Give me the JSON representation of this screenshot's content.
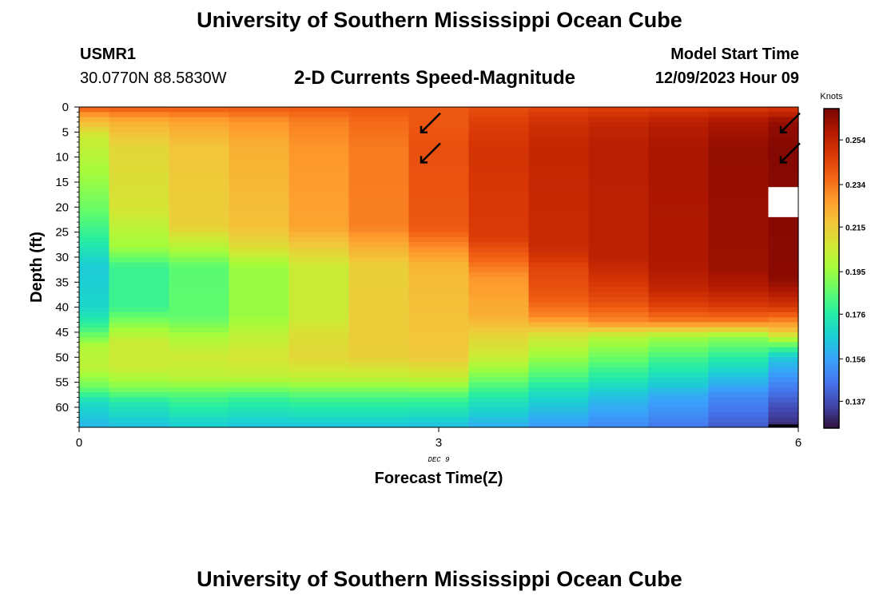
{
  "header": {
    "title": "University of Southern Mississippi Ocean Cube",
    "station": "USMR1",
    "coords": "30.0770N  88.5830W",
    "subtitle": "2-D Currents Speed-Magnitude",
    "model_label": "Model Start Time",
    "model_time": "12/09/2023 Hour 09"
  },
  "footer": {
    "title": "University of Southern Mississippi Ocean Cube"
  },
  "chart_data": {
    "type": "heatmap",
    "title": "2-D Currents Speed-Magnitude",
    "xlabel": "Forecast Time(Z)",
    "ylabel": "Depth (ft)",
    "x_ticks": [
      0,
      3,
      6
    ],
    "x_sublabel": "DEC 9",
    "xlim": [
      0,
      6
    ],
    "y_ticks": [
      0,
      5,
      10,
      15,
      20,
      25,
      30,
      35,
      40,
      45,
      50,
      55,
      60
    ],
    "ylim": [
      0,
      64
    ],
    "y_inverted": true,
    "colorbar": {
      "label": "Knots",
      "ticks": [
        0.254,
        0.234,
        0.215,
        0.195,
        0.176,
        0.156,
        0.137
      ],
      "range": [
        0.125,
        0.268
      ],
      "colormap": [
        "#30123b",
        "#4145ab",
        "#4675ed",
        "#39a2fc",
        "#1bcfd4",
        "#24eca6",
        "#61fc6c",
        "#a4fc3b",
        "#d1e834",
        "#f3c63a",
        "#fe9b2d",
        "#f36315",
        "#d93806",
        "#b11901",
        "#7a0402"
      ]
    },
    "columns": [
      {
        "x_start": 0.0,
        "x_end": 0.25,
        "profile": [
          [
            0,
            0.24
          ],
          [
            2,
            0.224
          ],
          [
            6,
            0.205
          ],
          [
            12,
            0.198
          ],
          [
            20,
            0.188
          ],
          [
            26,
            0.178
          ],
          [
            32,
            0.165
          ],
          [
            40,
            0.168
          ],
          [
            44,
            0.18
          ],
          [
            48,
            0.2
          ],
          [
            52,
            0.202
          ],
          [
            56,
            0.188
          ],
          [
            59,
            0.17
          ],
          [
            64,
            0.16
          ]
        ]
      },
      {
        "x_start": 0.25,
        "x_end": 0.75,
        "profile": [
          [
            0,
            0.24
          ],
          [
            3,
            0.222
          ],
          [
            8,
            0.212
          ],
          [
            20,
            0.208
          ],
          [
            28,
            0.196
          ],
          [
            32,
            0.18
          ],
          [
            40,
            0.18
          ],
          [
            44,
            0.195
          ],
          [
            47,
            0.205
          ],
          [
            52,
            0.205
          ],
          [
            56,
            0.192
          ],
          [
            59,
            0.175
          ],
          [
            64,
            0.162
          ]
        ]
      },
      {
        "x_start": 0.75,
        "x_end": 1.25,
        "profile": [
          [
            0,
            0.24
          ],
          [
            3,
            0.225
          ],
          [
            8,
            0.217
          ],
          [
            24,
            0.214
          ],
          [
            28,
            0.2
          ],
          [
            32,
            0.185
          ],
          [
            42,
            0.186
          ],
          [
            46,
            0.198
          ],
          [
            50,
            0.206
          ],
          [
            54,
            0.202
          ],
          [
            58,
            0.182
          ],
          [
            64,
            0.165
          ]
        ]
      },
      {
        "x_start": 1.25,
        "x_end": 1.75,
        "profile": [
          [
            0,
            0.24
          ],
          [
            3,
            0.228
          ],
          [
            8,
            0.222
          ],
          [
            24,
            0.218
          ],
          [
            28,
            0.21
          ],
          [
            32,
            0.195
          ],
          [
            42,
            0.195
          ],
          [
            46,
            0.203
          ],
          [
            50,
            0.208
          ],
          [
            54,
            0.202
          ],
          [
            58,
            0.18
          ],
          [
            64,
            0.163
          ]
        ]
      },
      {
        "x_start": 1.75,
        "x_end": 2.25,
        "profile": [
          [
            0,
            0.24
          ],
          [
            3,
            0.232
          ],
          [
            8,
            0.228
          ],
          [
            24,
            0.225
          ],
          [
            28,
            0.215
          ],
          [
            32,
            0.205
          ],
          [
            42,
            0.205
          ],
          [
            46,
            0.21
          ],
          [
            50,
            0.212
          ],
          [
            54,
            0.203
          ],
          [
            58,
            0.182
          ],
          [
            64,
            0.163
          ]
        ]
      },
      {
        "x_start": 2.25,
        "x_end": 2.75,
        "profile": [
          [
            0,
            0.24
          ],
          [
            3,
            0.236
          ],
          [
            8,
            0.233
          ],
          [
            24,
            0.232
          ],
          [
            28,
            0.222
          ],
          [
            32,
            0.214
          ],
          [
            42,
            0.215
          ],
          [
            46,
            0.215
          ],
          [
            50,
            0.214
          ],
          [
            54,
            0.203
          ],
          [
            58,
            0.182
          ],
          [
            64,
            0.163
          ]
        ]
      },
      {
        "x_start": 2.75,
        "x_end": 3.25,
        "profile": [
          [
            0,
            0.24
          ],
          [
            3,
            0.24
          ],
          [
            8,
            0.242
          ],
          [
            24,
            0.24
          ],
          [
            28,
            0.23
          ],
          [
            32,
            0.22
          ],
          [
            42,
            0.218
          ],
          [
            46,
            0.217
          ],
          [
            50,
            0.216
          ],
          [
            54,
            0.204
          ],
          [
            58,
            0.182
          ],
          [
            64,
            0.162
          ]
        ]
      },
      {
        "x_start": 3.25,
        "x_end": 3.75,
        "profile": [
          [
            0,
            0.242
          ],
          [
            3,
            0.246
          ],
          [
            8,
            0.249
          ],
          [
            26,
            0.247
          ],
          [
            30,
            0.238
          ],
          [
            34,
            0.228
          ],
          [
            42,
            0.222
          ],
          [
            46,
            0.212
          ],
          [
            50,
            0.205
          ],
          [
            54,
            0.19
          ],
          [
            58,
            0.175
          ],
          [
            64,
            0.158
          ]
        ]
      },
      {
        "x_start": 3.75,
        "x_end": 4.25,
        "profile": [
          [
            0,
            0.244
          ],
          [
            3,
            0.25
          ],
          [
            8,
            0.253
          ],
          [
            28,
            0.252
          ],
          [
            32,
            0.245
          ],
          [
            38,
            0.24
          ],
          [
            42,
            0.23
          ],
          [
            46,
            0.206
          ],
          [
            50,
            0.195
          ],
          [
            54,
            0.182
          ],
          [
            58,
            0.168
          ],
          [
            64,
            0.154
          ]
        ]
      },
      {
        "x_start": 4.25,
        "x_end": 4.75,
        "profile": [
          [
            0,
            0.245
          ],
          [
            3,
            0.253
          ],
          [
            8,
            0.256
          ],
          [
            30,
            0.255
          ],
          [
            34,
            0.25
          ],
          [
            39,
            0.242
          ],
          [
            43,
            0.23
          ],
          [
            46,
            0.2
          ],
          [
            50,
            0.188
          ],
          [
            54,
            0.176
          ],
          [
            58,
            0.162
          ],
          [
            64,
            0.15
          ]
        ]
      },
      {
        "x_start": 4.75,
        "x_end": 5.25,
        "profile": [
          [
            0,
            0.246
          ],
          [
            3,
            0.256
          ],
          [
            8,
            0.259
          ],
          [
            32,
            0.258
          ],
          [
            36,
            0.254
          ],
          [
            40,
            0.245
          ],
          [
            43,
            0.232
          ],
          [
            46,
            0.196
          ],
          [
            50,
            0.182
          ],
          [
            54,
            0.17
          ],
          [
            58,
            0.157
          ],
          [
            64,
            0.146
          ]
        ]
      },
      {
        "x_start": 5.25,
        "x_end": 5.75,
        "profile": [
          [
            0,
            0.247
          ],
          [
            3,
            0.259
          ],
          [
            8,
            0.263
          ],
          [
            32,
            0.262
          ],
          [
            36,
            0.257
          ],
          [
            40,
            0.247
          ],
          [
            43,
            0.232
          ],
          [
            46,
            0.193
          ],
          [
            50,
            0.177
          ],
          [
            54,
            0.163
          ],
          [
            58,
            0.15
          ],
          [
            64,
            0.14
          ]
        ]
      },
      {
        "x_start": 5.75,
        "x_end": 6.0,
        "gap": [
          16,
          21.5
        ],
        "profile": [
          [
            0,
            0.248
          ],
          [
            3,
            0.263
          ],
          [
            8,
            0.266
          ],
          [
            34,
            0.265
          ],
          [
            37,
            0.258
          ],
          [
            40,
            0.248
          ],
          [
            42,
            0.236
          ],
          [
            45,
            0.215
          ],
          [
            47,
            0.192
          ],
          [
            50,
            0.165
          ],
          [
            55,
            0.15
          ],
          [
            60,
            0.137
          ],
          [
            64,
            0.13
          ]
        ]
      }
    ],
    "vectors": [
      {
        "x": 3.0,
        "depth": 3,
        "dx": -1,
        "dy": 1
      },
      {
        "x": 3.0,
        "depth": 9,
        "dx": -1,
        "dy": 1
      },
      {
        "x": 6.0,
        "depth": 3,
        "dx": -1,
        "dy": 1
      },
      {
        "x": 6.0,
        "depth": 9,
        "dx": -1,
        "dy": 1
      }
    ]
  }
}
